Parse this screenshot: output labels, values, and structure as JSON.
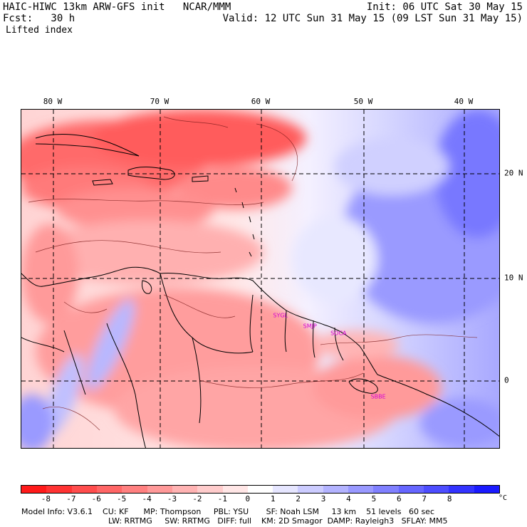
{
  "header": {
    "title_left": "HAIC-HIWC 13km ARW-GFS init   NCAR/MMM",
    "init": "Init: 06 UTC Sat 30 May 15",
    "fcst_label": "Fcst:   30 h",
    "valid": "Valid: 12 UTC Sun 31 May 15 (09 LST Sun 31 May 15)",
    "field": "Lifted index"
  },
  "map": {
    "lon_labels": [
      "80 W",
      "70 W",
      "60 W",
      "50 W",
      "40 W"
    ],
    "lat_labels": [
      "20 N",
      "10 N",
      "0"
    ],
    "lon_range": [
      -83.5,
      -36.5
    ],
    "lat_range": [
      -6.5,
      26.5
    ],
    "stations": [
      {
        "name": "SYGL",
        "lon": -58.1,
        "lat": 6.5
      },
      {
        "name": "SMJP",
        "lon": -55.2,
        "lat": 5.45
      },
      {
        "name": "SOCA",
        "lon": -52.4,
        "lat": 4.8
      },
      {
        "name": "SBBE",
        "lon": -48.5,
        "lat": -1.4
      }
    ]
  },
  "colorbar": {
    "ticks": [
      "-8",
      "-7",
      "-6",
      "-5",
      "-4",
      "-3",
      "-2",
      "-1",
      "0",
      "1",
      "2",
      "3",
      "4",
      "5",
      "6",
      "7",
      "8"
    ],
    "unit": "°C",
    "colors": [
      "#ff1a1a",
      "#ff3333",
      "#ff4d4d",
      "#ff6666",
      "#ff8080",
      "#ff9999",
      "#ffb3b3",
      "#ffcccc",
      "#ffe6e6",
      "#ffffff",
      "#e6e6ff",
      "#ccccff",
      "#b3b3ff",
      "#9999ff",
      "#8080ff",
      "#6666ff",
      "#4d4dff",
      "#3333ff",
      "#1a1aff"
    ]
  },
  "model_info": {
    "line1": "Model Info: V3.6.1    CU: KF      MP: Thompson     PBL: YSU       SF: Noah LSM     13 km    51 levels   60 sec",
    "line2": "LW: RRTMG     SW: RRTMG   DIFF: full    KM: 2D Smagor  DAMP: Rayleigh3   SFLAY: MM5"
  }
}
